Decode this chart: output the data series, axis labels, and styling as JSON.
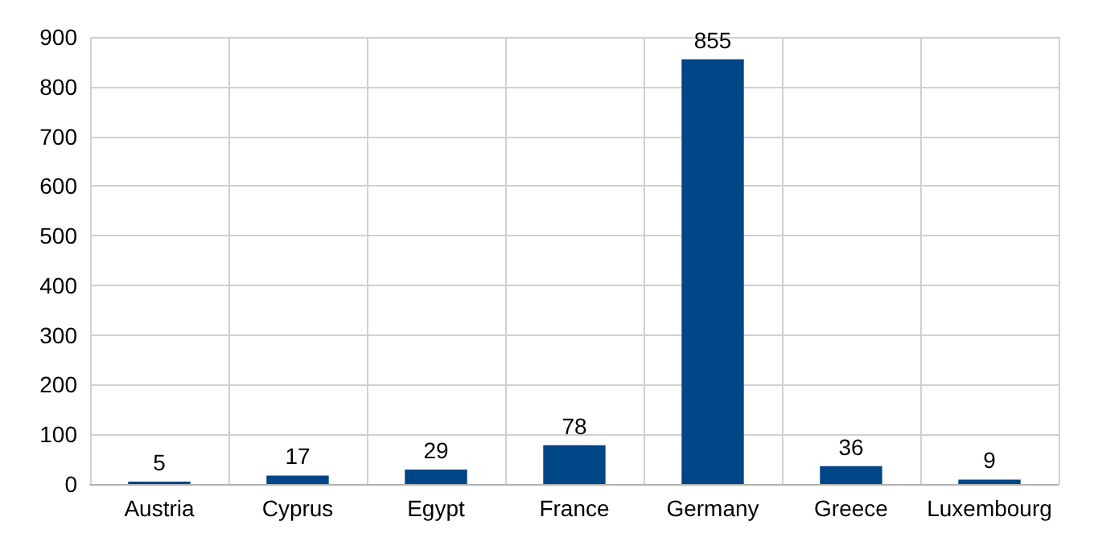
{
  "chart_data": {
    "type": "bar",
    "categories": [
      "Austria",
      "Cyprus",
      "Egypt",
      "France",
      "Germany",
      "Greece",
      "Luxembourg"
    ],
    "values": [
      5,
      17,
      29,
      78,
      855,
      36,
      9
    ],
    "color": "#004586",
    "ylim": [
      0,
      900
    ],
    "yticks": [
      0,
      100,
      200,
      300,
      400,
      500,
      600,
      700,
      800,
      900
    ],
    "grid": true,
    "data_labels": true
  }
}
